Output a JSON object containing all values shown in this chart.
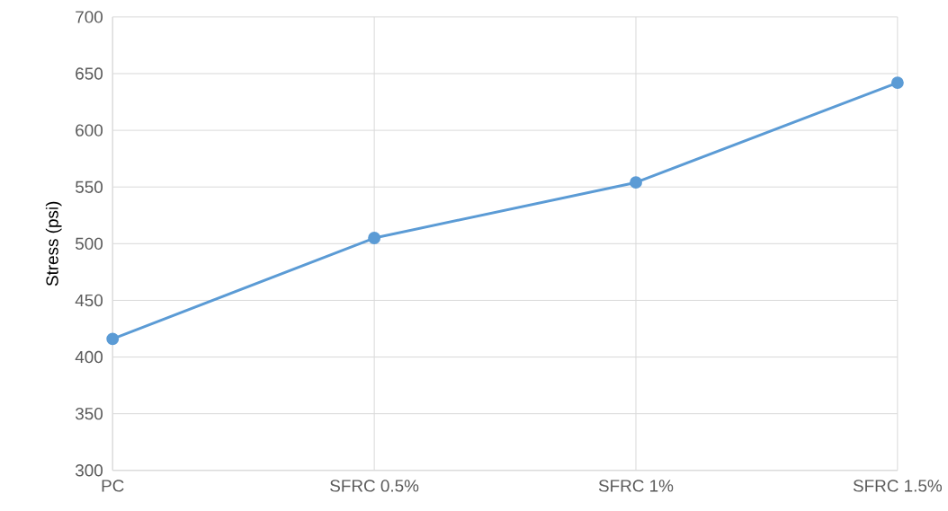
{
  "chart_data": {
    "type": "line",
    "ylabel": "Stress (psi)",
    "categories": [
      "PC",
      "SFRC 0.5%",
      "SFRC 1%",
      "SFRC 1.5%"
    ],
    "series": [
      {
        "color": "#5b9bd5",
        "values": [
          416,
          505,
          554,
          642
        ]
      }
    ],
    "ylim": [
      300,
      700
    ],
    "yticks": [
      300,
      350,
      400,
      450,
      500,
      550,
      600,
      650,
      700
    ],
    "grid": true,
    "marker": "circle",
    "line_style": "solid"
  }
}
